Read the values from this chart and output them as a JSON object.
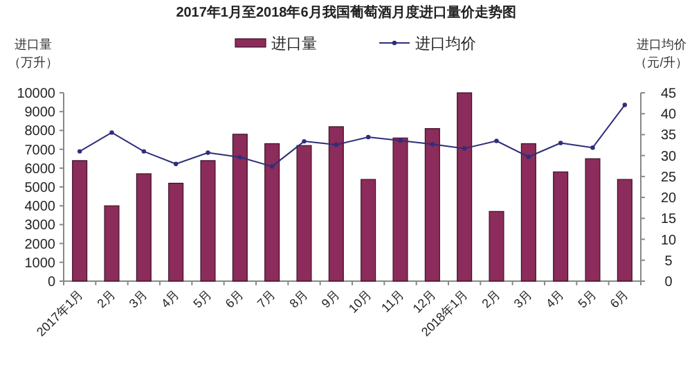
{
  "chart_data": {
    "type": "bar",
    "title": "2017年1月至2018年6月我国葡萄酒月度进口量价走势图",
    "ylabel": "进口量（万升）",
    "y2label": "进口均价（元/升）",
    "categories": [
      "2017年1月",
      "2月",
      "3月",
      "4月",
      "5月",
      "6月",
      "7月",
      "8月",
      "9月",
      "10月",
      "11月",
      "12月",
      "2018年1月",
      "2月",
      "3月",
      "4月",
      "5月",
      "6月"
    ],
    "series": [
      {
        "name": "进口量",
        "color": "#8b2c5a",
        "values": [
          6400,
          4000,
          5700,
          5200,
          6400,
          7800,
          7300,
          7200,
          8200,
          5400,
          7600,
          8100,
          10000,
          3700,
          7300,
          5800,
          6500,
          5400
        ]
      },
      {
        "name": "进口均价",
        "type": "line",
        "axis": "y2",
        "color": "#2e2e7a",
        "marker": "circle",
        "values": [
          31,
          35.5,
          31,
          28,
          30.7,
          29.6,
          27.4,
          33.4,
          32.6,
          34.4,
          33.6,
          32.7,
          31.7,
          33.5,
          29.7,
          33,
          31.9,
          42.1
        ]
      }
    ],
    "ylim": [
      0,
      10000
    ],
    "yticks": [
      0,
      1000,
      2000,
      3000,
      4000,
      5000,
      6000,
      7000,
      8000,
      9000,
      10000
    ],
    "y2lim": [
      0,
      45
    ],
    "y2ticks": [
      0,
      5,
      10,
      15,
      20,
      25,
      30,
      35,
      40,
      45
    ],
    "legend": "top",
    "grid": false
  }
}
